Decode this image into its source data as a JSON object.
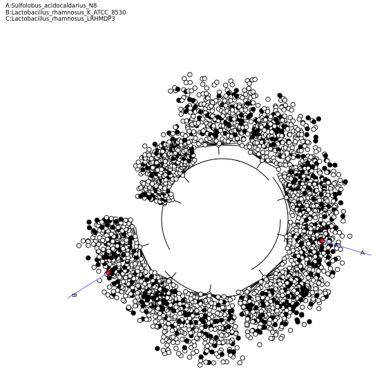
{
  "legend": {
    "lines": [
      "A:Sulfolobus_acidocaldarius_N8",
      "B:Lactobacillus_rhamnosus_K_ATCC_8530",
      "C:Lactobacillus_rhamnosus_LRHMDP3"
    ]
  },
  "markers": [
    {
      "label": "A",
      "color": "#cc0000"
    },
    {
      "label": "B",
      "color": "#cc0000"
    }
  ],
  "colors": {
    "background": "#ffffff",
    "edge": "#000000",
    "node_fill": "#ffffff",
    "node_stroke": "#000000",
    "highlight_node": "#cc0000",
    "pointer_line": "#8888ee"
  }
}
